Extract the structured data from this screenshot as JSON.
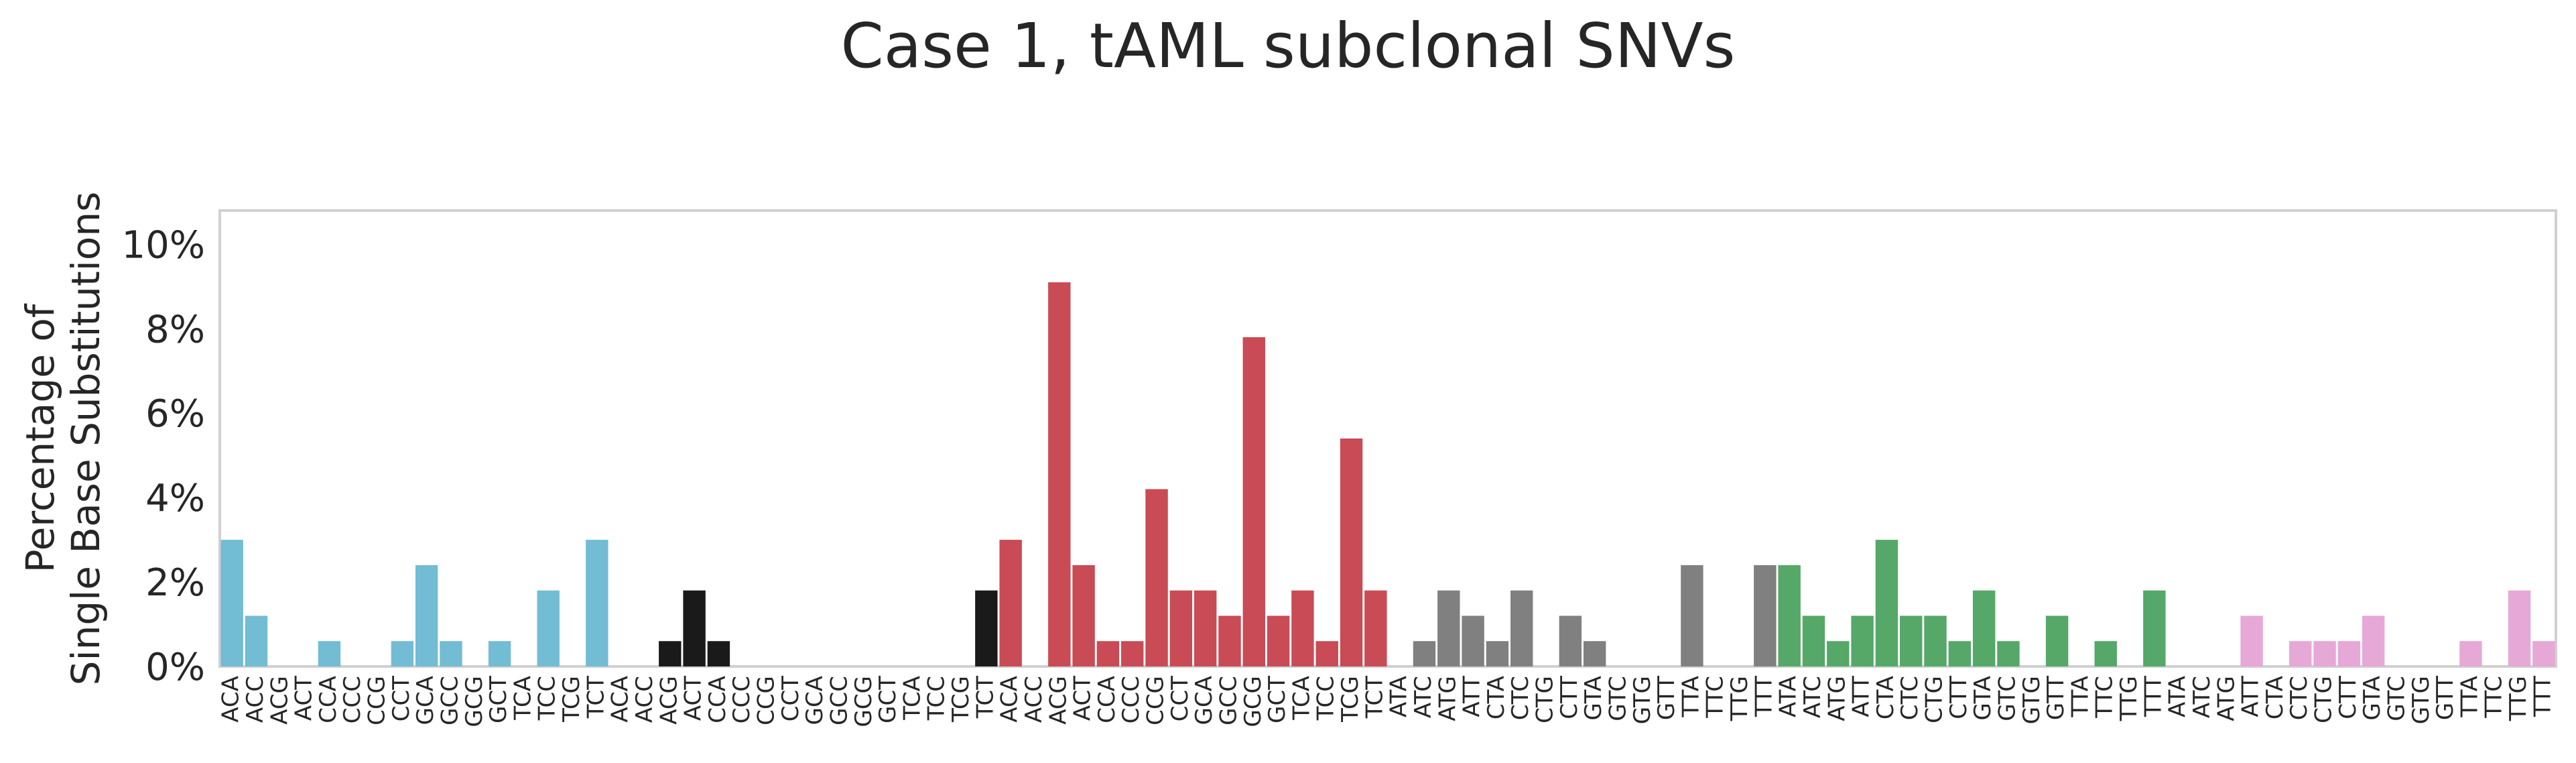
{
  "chart_data": {
    "type": "bar",
    "title": "Case 1, tAML subclonal SNVs",
    "ylabel": "Percentage of\nSingle Base Substitutions",
    "xlabel": "",
    "ylim": [
      0,
      10.8
    ],
    "yticks": [
      0,
      2,
      4,
      6,
      8,
      10
    ],
    "ytick_labels": [
      "0%",
      "2%",
      "4%",
      "6%",
      "8%",
      "10%"
    ],
    "grid": false,
    "legend": "none",
    "categories": [
      "ACA",
      "ACC",
      "ACG",
      "ACT",
      "CCA",
      "CCC",
      "CCG",
      "CCT",
      "GCA",
      "GCC",
      "GCG",
      "GCT",
      "TCA",
      "TCC",
      "TCG",
      "TCT",
      "ACA",
      "ACC",
      "ACG",
      "ACT",
      "CCA",
      "CCC",
      "CCG",
      "CCT",
      "GCA",
      "GCC",
      "GCG",
      "GCT",
      "TCA",
      "TCC",
      "TCG",
      "TCT",
      "ACA",
      "ACC",
      "ACG",
      "ACT",
      "CCA",
      "CCC",
      "CCG",
      "CCT",
      "GCA",
      "GCC",
      "GCG",
      "GCT",
      "TCA",
      "TCC",
      "TCG",
      "TCT",
      "ATA",
      "ATC",
      "ATG",
      "ATT",
      "CTA",
      "CTC",
      "CTG",
      "CTT",
      "GTA",
      "GTC",
      "GTG",
      "GTT",
      "TTA",
      "TTC",
      "TTG",
      "TTT",
      "ATA",
      "ATC",
      "ATG",
      "ATT",
      "CTA",
      "CTC",
      "CTG",
      "CTT",
      "GTA",
      "GTC",
      "GTG",
      "GTT",
      "TTA",
      "TTC",
      "TTG",
      "TTT",
      "ATA",
      "ATC",
      "ATG",
      "ATT",
      "CTA",
      "CTC",
      "CTG",
      "CTT",
      "GTA",
      "GTC",
      "GTG",
      "GTT",
      "TTA",
      "TTC",
      "TTG",
      "TTT"
    ],
    "values": [
      3.0,
      1.2,
      0,
      0,
      0.6,
      0,
      0,
      0.6,
      2.4,
      0.6,
      0,
      0.6,
      0,
      1.8,
      0,
      3.0,
      0,
      0,
      0.6,
      1.8,
      0.6,
      0,
      0,
      0,
      0,
      0,
      0,
      0,
      0,
      0,
      0,
      1.8,
      3.0,
      0,
      9.1,
      2.4,
      0.6,
      0.6,
      4.2,
      1.8,
      1.8,
      1.2,
      7.8,
      1.2,
      1.8,
      0.6,
      5.4,
      1.8,
      0,
      0.6,
      1.8,
      1.2,
      0.6,
      1.8,
      0,
      1.2,
      0.6,
      0,
      0,
      0,
      2.4,
      0,
      0,
      2.4,
      2.4,
      1.2,
      0.6,
      1.2,
      3.0,
      1.2,
      1.2,
      0.6,
      1.8,
      0.6,
      0,
      1.2,
      0,
      0.6,
      0,
      1.8,
      0,
      0,
      0,
      1.2,
      0,
      0.6,
      0.6,
      0.6,
      1.2,
      0,
      0,
      0,
      0.6,
      0,
      1.8,
      0.6
    ],
    "group_colors": [
      "#72bcd4",
      "#1a1a1a",
      "#c84b55",
      "#808080",
      "#55a868",
      "#e6a8d6"
    ]
  }
}
